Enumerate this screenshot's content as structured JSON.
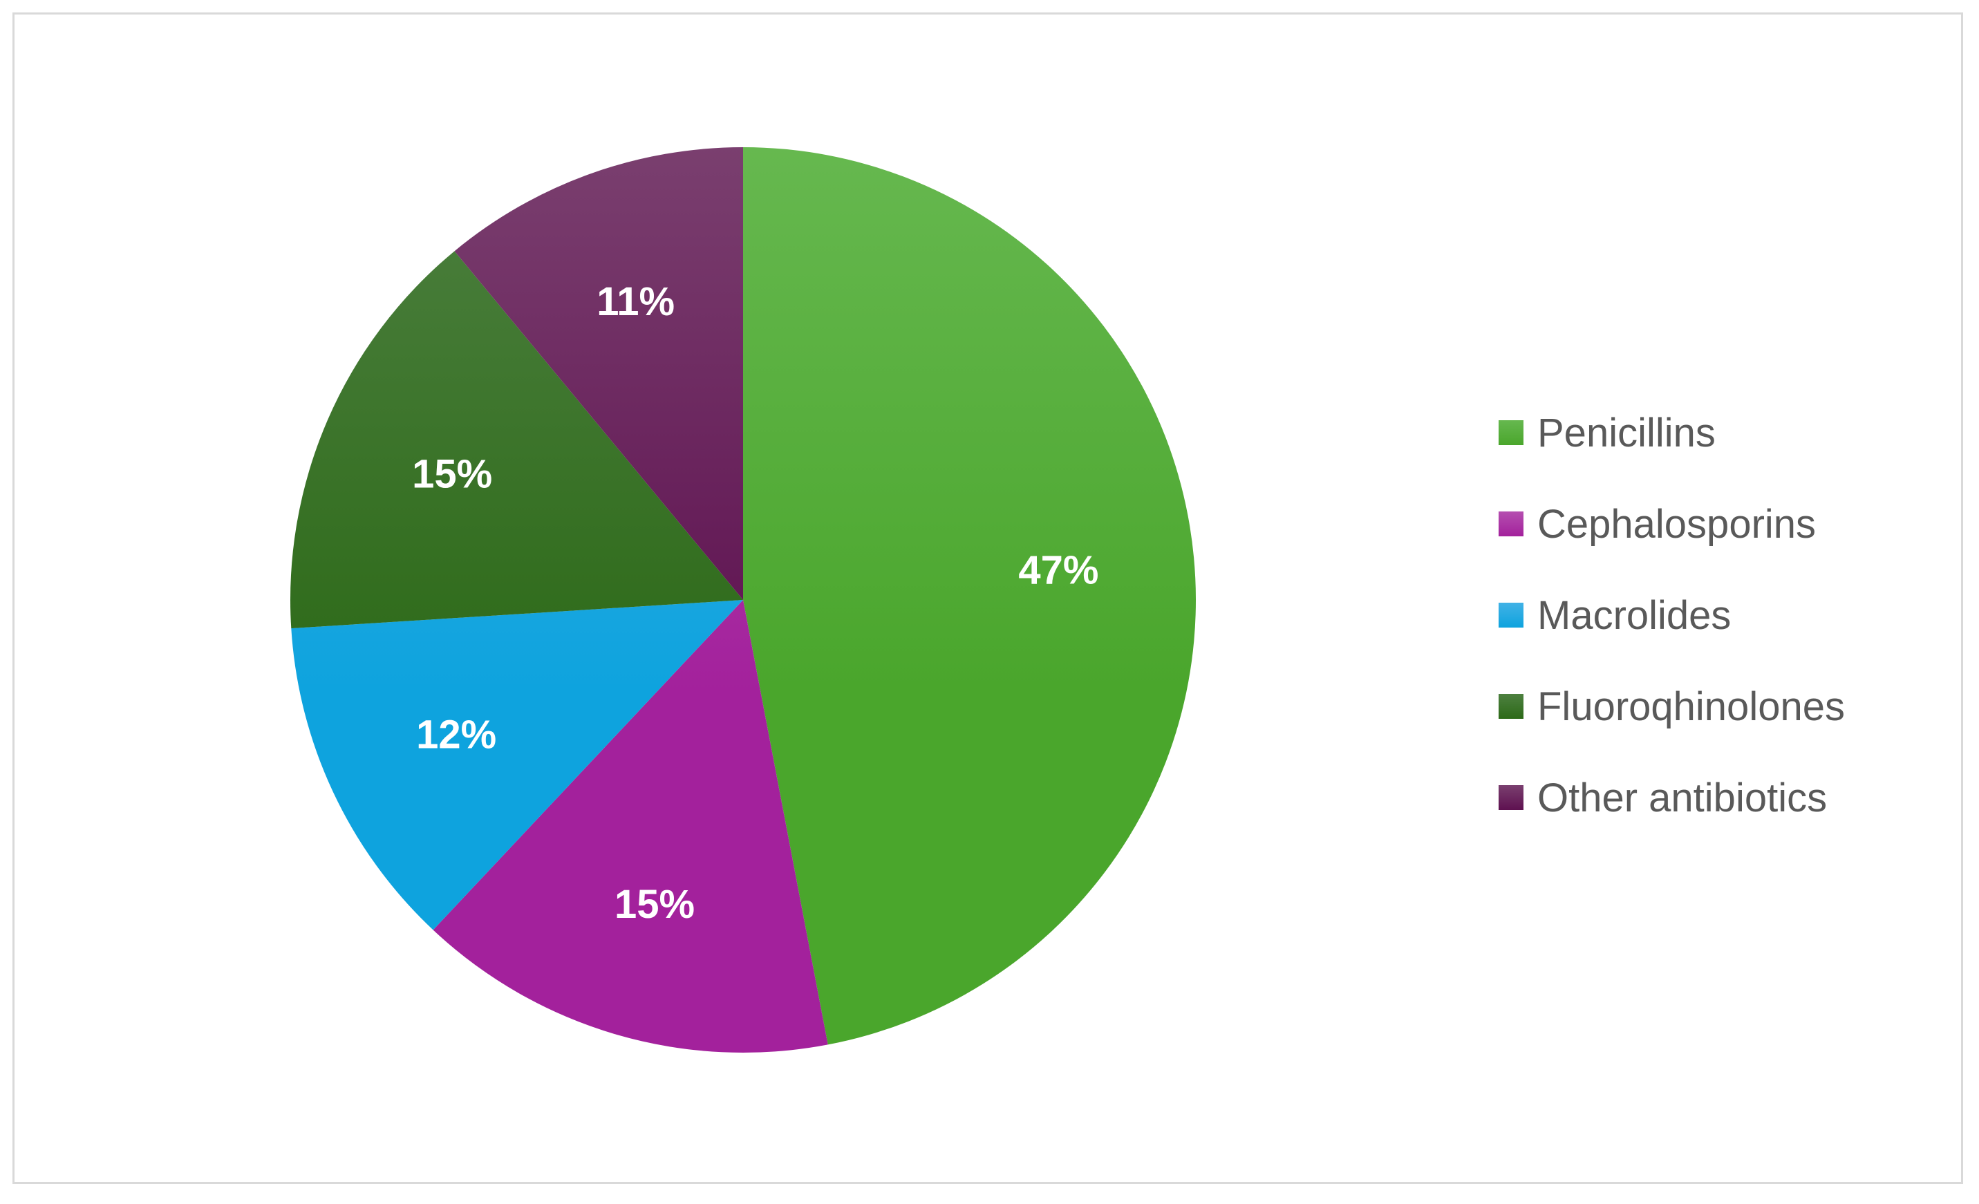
{
  "chart_data": {
    "type": "pie",
    "title": "",
    "legend_position": "right",
    "categories": [
      "Penicillins",
      "Cephalosporins",
      "Macrolides",
      "Fluoroqhinolones",
      "Other antibiotics"
    ],
    "values": [
      47,
      15,
      12,
      15,
      11
    ],
    "value_labels": [
      "47%",
      "15%",
      "12%",
      "15%",
      "11%"
    ],
    "colors": [
      "#4aa62c",
      "#a3219c",
      "#0ea3de",
      "#2d6a18",
      "#5e1150"
    ],
    "colors_light": [
      "#66b84f",
      "#b54fb0",
      "#41b2e6",
      "#4d8040",
      "#7a3f6f"
    ],
    "start_angle": "12 o'clock",
    "direction": "clockwise"
  }
}
